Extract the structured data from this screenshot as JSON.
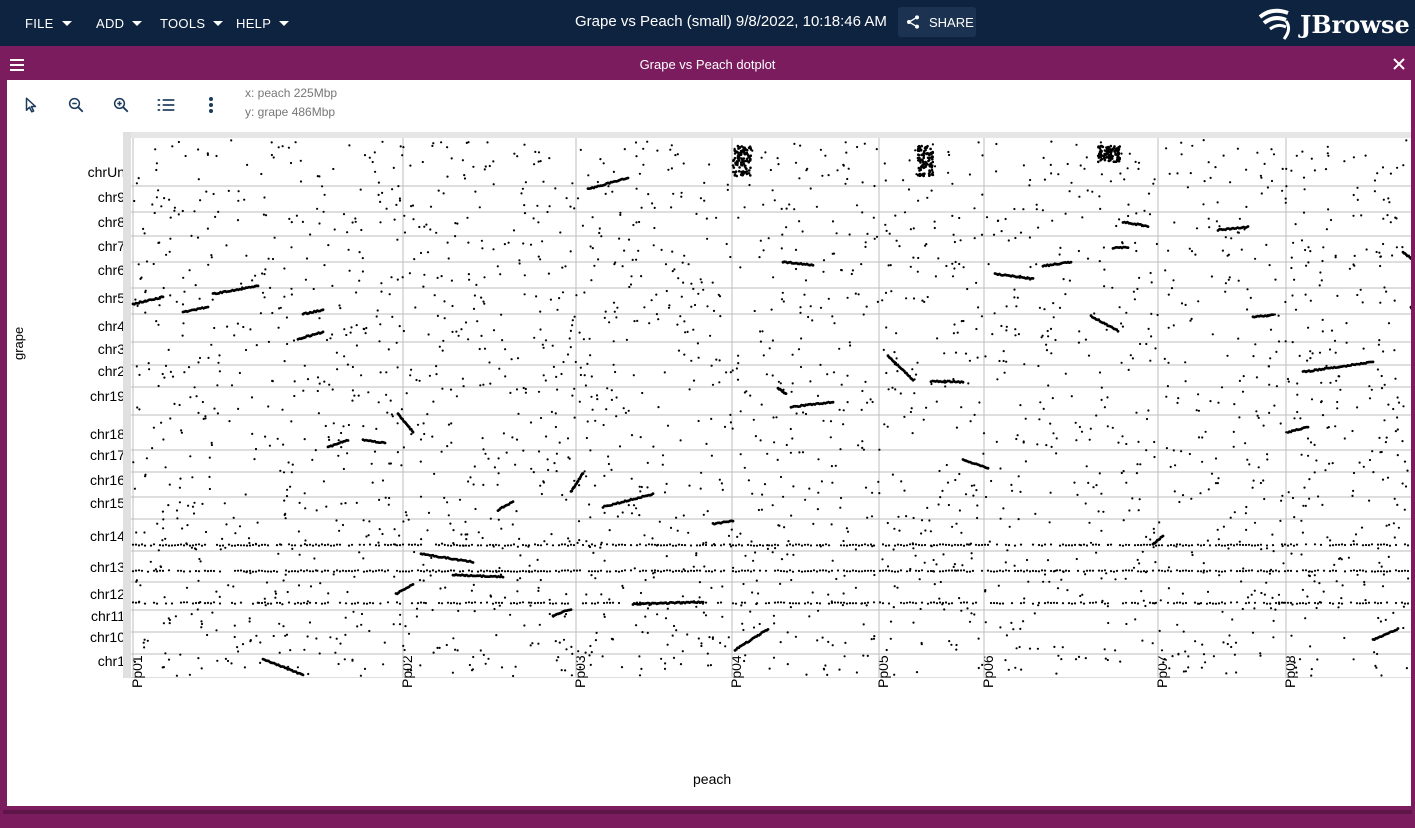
{
  "appbar": {
    "menus": [
      {
        "label": "FILE"
      },
      {
        "label": "ADD"
      },
      {
        "label": "TOOLS"
      },
      {
        "label": "HELP"
      }
    ],
    "session_title": "Grape vs Peach (small) 9/8/2022, 10:18:46 AM",
    "share_label": "SHARE",
    "logo_text": "JBrowse"
  },
  "view": {
    "title": "Grape vs Peach dotplot",
    "x_info": "x: peach 225Mbp",
    "y_info": "y: grape 486Mbp",
    "toolbar_icons": [
      "cursor-icon",
      "zoom-out-icon",
      "zoom-in-icon",
      "list-icon",
      "more-vert-icon"
    ]
  },
  "chart_data": {
    "type": "scatter",
    "xlabel": "peach",
    "ylabel": "grape",
    "x_regions": [
      "Pp01",
      "Pp02",
      "Pp03",
      "Pp04",
      "Pp05",
      "Pp06",
      "Pp07",
      "Pp08"
    ],
    "y_regions": [
      "chr1",
      "chr10",
      "chr11",
      "chr12",
      "chr13",
      "chr14",
      "chr15",
      "chr16",
      "chr17",
      "chr18",
      "chr19",
      "chr2",
      "chr3",
      "chr4",
      "chr5",
      "chr6",
      "chr7",
      "chr8",
      "chr9",
      "chrUn"
    ],
    "grid": true,
    "point_color": "#000000"
  }
}
